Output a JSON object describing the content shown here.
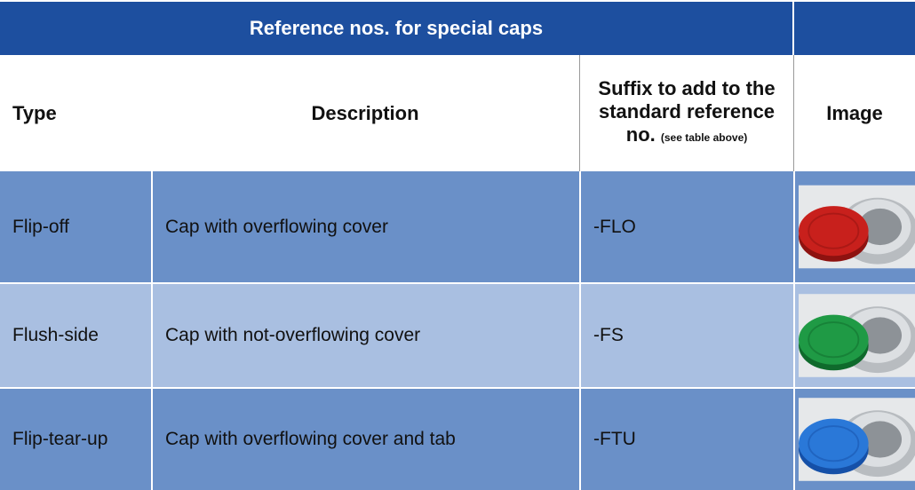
{
  "table": {
    "title": "Reference nos. for special caps",
    "columns": [
      "Type",
      "Description",
      "Suffix to add to the standard reference no.",
      "Image"
    ],
    "column_note": "(see table above)",
    "rows": [
      [
        "Flip-off",
        "Cap with overflowing cover",
        "-FLO"
      ],
      [
        "Flush-side",
        "Cap with not-overflowing cover",
        "-FS"
      ],
      [
        "Flip-tear-up",
        "Cap with overflowing cover and tab",
        "-FTU"
      ]
    ]
  }
}
